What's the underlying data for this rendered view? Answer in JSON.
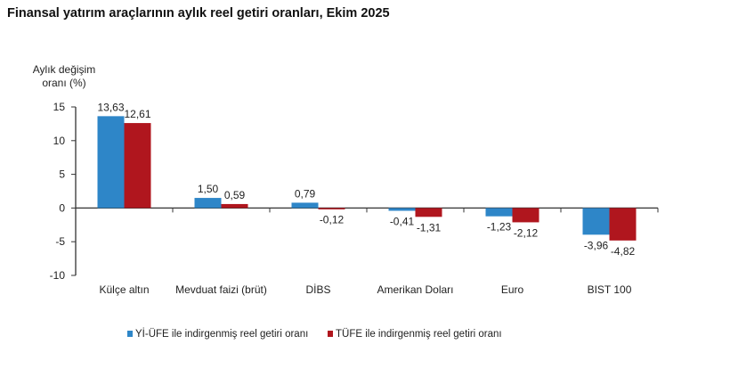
{
  "chart_data": {
    "type": "bar",
    "title": "Finansal yatırım araçlarının aylık reel getiri oranları, Ekim 2025",
    "ylabel": [
      "Aylık değişim",
      "oranı (%)"
    ],
    "xlabel": "",
    "ylim": [
      -10,
      15
    ],
    "yticks": [
      15,
      10,
      5,
      0,
      -5,
      -10
    ],
    "grid": false,
    "legend_position": "bottom",
    "categories": [
      "Külçe altın",
      "Mevduat faizi (brüt)",
      "DİBS",
      "Amerikan Doları",
      "Euro",
      "BIST 100"
    ],
    "series": [
      {
        "name": "Yİ-ÜFE ile indirgenmiş reel getiri oranı",
        "color": "#2E86C8",
        "values": [
          13.63,
          1.5,
          0.79,
          -0.41,
          -1.23,
          -3.96
        ],
        "labels": [
          "13,63",
          "1,50",
          "0,79",
          "-0,41",
          "-1,23",
          "-3,96"
        ]
      },
      {
        "name": "TÜFE ile indirgenmiş reel getiri oranı",
        "color": "#B0161E",
        "values": [
          12.61,
          0.59,
          -0.12,
          -1.31,
          -2.12,
          -4.82
        ],
        "labels": [
          "12,61",
          "0,59",
          "-0,12",
          "-1,31",
          "-2,12",
          "-4,82"
        ]
      }
    ]
  }
}
